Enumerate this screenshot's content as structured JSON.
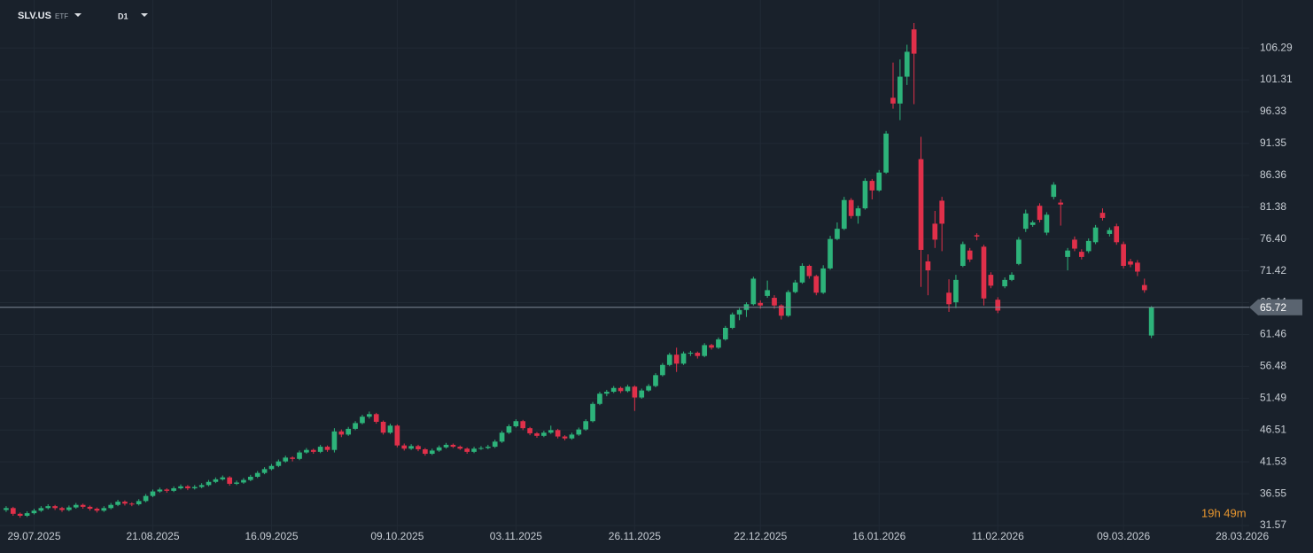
{
  "chart_data": {
    "type": "candlestick",
    "symbol": "SLV.US",
    "instrument_type": "ETF",
    "timeframe": "D1",
    "colors": {
      "up": "#2db37a",
      "down": "#e0304a"
    },
    "xlim": [
      -0.5,
      178
    ],
    "xticks": [
      {
        "value": 4,
        "label": "29.07.2025"
      },
      {
        "value": 21,
        "label": "21.08.2025"
      },
      {
        "value": 38,
        "label": "16.09.2025"
      },
      {
        "value": 56,
        "label": "09.10.2025"
      },
      {
        "value": 73,
        "label": "03.11.2025"
      },
      {
        "value": 90,
        "label": "26.11.2025"
      },
      {
        "value": 108,
        "label": "22.12.2025"
      },
      {
        "value": 125,
        "label": "16.01.2026"
      },
      {
        "value": 142,
        "label": "11.02.2026"
      },
      {
        "value": 160,
        "label": "09.03.2026"
      },
      {
        "value": 177,
        "label": "28.03.2026"
      }
    ],
    "ylim": [
      30.6,
      113.8
    ],
    "yticks": [
      31.57,
      36.55,
      41.53,
      46.51,
      51.49,
      56.48,
      61.46,
      66.44,
      71.42,
      {
        "value": 76.4,
        "label": "76.40"
      },
      81.38,
      86.36,
      91.35,
      96.33,
      101.31,
      106.29
    ],
    "grid": true,
    "last_price": 65.72,
    "countdown": "19h 49m",
    "ohlc": [
      [
        34.0,
        34.6,
        33.7,
        34.3
      ],
      [
        34.3,
        34.5,
        33.1,
        33.4
      ],
      [
        33.4,
        33.6,
        32.8,
        33.1
      ],
      [
        33.1,
        33.8,
        32.9,
        33.5
      ],
      [
        33.5,
        34.2,
        33.3,
        33.9
      ],
      [
        33.9,
        34.6,
        33.7,
        34.3
      ],
      [
        34.3,
        34.9,
        34.1,
        34.6
      ],
      [
        34.6,
        34.8,
        34.0,
        34.3
      ],
      [
        34.3,
        34.5,
        33.7,
        34.0
      ],
      [
        34.0,
        34.7,
        33.8,
        34.4
      ],
      [
        34.4,
        35.1,
        34.2,
        34.8
      ],
      [
        34.8,
        35.0,
        34.2,
        34.5
      ],
      [
        34.5,
        34.7,
        33.9,
        34.2
      ],
      [
        34.2,
        34.4,
        33.6,
        33.9
      ],
      [
        33.9,
        34.6,
        33.7,
        34.3
      ],
      [
        34.3,
        35.1,
        34.1,
        34.8
      ],
      [
        34.8,
        35.6,
        34.6,
        35.3
      ],
      [
        35.3,
        35.5,
        34.7,
        35.0
      ],
      [
        35.0,
        35.2,
        34.6,
        34.9
      ],
      [
        34.9,
        35.7,
        34.7,
        35.4
      ],
      [
        35.4,
        36.5,
        35.2,
        36.2
      ],
      [
        36.2,
        37.2,
        36.0,
        36.9
      ],
      [
        36.9,
        37.5,
        36.7,
        37.2
      ],
      [
        37.2,
        37.4,
        36.7,
        37.0
      ],
      [
        37.0,
        37.7,
        36.8,
        37.4
      ],
      [
        37.4,
        38.0,
        37.2,
        37.7
      ],
      [
        37.7,
        37.9,
        37.1,
        37.4
      ],
      [
        37.4,
        37.9,
        37.2,
        37.6
      ],
      [
        37.6,
        38.2,
        37.4,
        37.9
      ],
      [
        37.9,
        38.7,
        37.7,
        38.4
      ],
      [
        38.4,
        39.1,
        38.2,
        38.8
      ],
      [
        38.8,
        39.4,
        38.6,
        39.1
      ],
      [
        39.1,
        39.3,
        37.8,
        38.1
      ],
      [
        38.1,
        38.6,
        37.9,
        38.3
      ],
      [
        38.3,
        39.0,
        38.1,
        38.7
      ],
      [
        38.7,
        39.5,
        38.5,
        39.2
      ],
      [
        39.2,
        40.1,
        39.0,
        39.8
      ],
      [
        39.8,
        40.7,
        39.6,
        40.4
      ],
      [
        40.4,
        41.2,
        40.2,
        40.9
      ],
      [
        40.9,
        41.9,
        40.7,
        41.6
      ],
      [
        41.6,
        42.5,
        41.4,
        42.2
      ],
      [
        42.2,
        42.4,
        41.6,
        42.0
      ],
      [
        42.0,
        43.3,
        41.8,
        43.0
      ],
      [
        43.0,
        43.7,
        42.8,
        43.4
      ],
      [
        43.4,
        43.6,
        42.8,
        43.1
      ],
      [
        43.1,
        44.2,
        42.9,
        43.9
      ],
      [
        43.9,
        44.1,
        43.1,
        43.4
      ],
      [
        43.4,
        46.8,
        43.0,
        46.3
      ],
      [
        46.3,
        46.6,
        45.4,
        45.8
      ],
      [
        45.8,
        47.0,
        45.6,
        46.7
      ],
      [
        46.7,
        47.9,
        46.5,
        47.6
      ],
      [
        47.6,
        48.9,
        47.4,
        48.6
      ],
      [
        48.6,
        49.4,
        48.3,
        49.0
      ],
      [
        49.0,
        49.2,
        47.5,
        47.8
      ],
      [
        47.8,
        48.0,
        45.8,
        46.1
      ],
      [
        46.1,
        47.5,
        45.9,
        47.2
      ],
      [
        47.2,
        47.4,
        43.8,
        44.1
      ],
      [
        44.1,
        44.4,
        43.3,
        43.6
      ],
      [
        43.6,
        44.3,
        43.4,
        44.0
      ],
      [
        44.0,
        44.2,
        43.2,
        43.5
      ],
      [
        43.5,
        43.7,
        42.5,
        42.8
      ],
      [
        42.8,
        43.6,
        42.6,
        43.3
      ],
      [
        43.3,
        44.1,
        43.1,
        43.8
      ],
      [
        43.8,
        44.5,
        43.6,
        44.2
      ],
      [
        44.2,
        44.4,
        43.7,
        43.9
      ],
      [
        43.9,
        44.1,
        43.4,
        43.6
      ],
      [
        43.6,
        43.8,
        42.8,
        43.1
      ],
      [
        43.1,
        43.9,
        42.9,
        43.6
      ],
      [
        43.6,
        44.0,
        43.4,
        43.7
      ],
      [
        43.7,
        44.2,
        43.5,
        43.9
      ],
      [
        43.9,
        45.0,
        43.7,
        44.7
      ],
      [
        44.7,
        46.4,
        44.5,
        46.1
      ],
      [
        46.1,
        47.4,
        45.9,
        47.1
      ],
      [
        47.1,
        48.2,
        46.9,
        47.9
      ],
      [
        47.9,
        48.1,
        46.5,
        46.8
      ],
      [
        46.8,
        47.0,
        45.7,
        46.0
      ],
      [
        46.0,
        46.2,
        45.3,
        45.6
      ],
      [
        45.6,
        46.4,
        45.4,
        46.1
      ],
      [
        46.1,
        47.2,
        45.9,
        46.5
      ],
      [
        46.5,
        46.7,
        45.2,
        45.5
      ],
      [
        45.5,
        45.7,
        44.9,
        45.2
      ],
      [
        45.2,
        46.1,
        45.0,
        45.8
      ],
      [
        45.8,
        46.9,
        45.6,
        46.6
      ],
      [
        46.6,
        48.2,
        46.4,
        47.9
      ],
      [
        47.9,
        50.9,
        47.7,
        50.6
      ],
      [
        50.6,
        52.5,
        50.4,
        52.2
      ],
      [
        52.2,
        52.8,
        51.8,
        52.5
      ],
      [
        52.5,
        53.4,
        52.3,
        53.1
      ],
      [
        53.1,
        53.3,
        52.3,
        52.6
      ],
      [
        52.6,
        53.6,
        52.4,
        53.3
      ],
      [
        53.3,
        53.5,
        49.5,
        51.6
      ],
      [
        51.6,
        53.0,
        51.4,
        52.7
      ],
      [
        52.7,
        53.7,
        52.5,
        53.4
      ],
      [
        53.4,
        55.4,
        53.2,
        55.1
      ],
      [
        55.1,
        57.0,
        54.9,
        56.7
      ],
      [
        56.7,
        58.6,
        56.5,
        58.3
      ],
      [
        58.3,
        59.4,
        55.6,
        56.9
      ],
      [
        56.9,
        58.8,
        56.7,
        58.5
      ],
      [
        58.5,
        58.9,
        58.1,
        58.6
      ],
      [
        58.6,
        58.8,
        57.7,
        58.1
      ],
      [
        58.1,
        60.1,
        57.9,
        59.8
      ],
      [
        59.8,
        60.0,
        59.1,
        59.4
      ],
      [
        59.4,
        61.0,
        59.2,
        60.7
      ],
      [
        60.7,
        62.8,
        60.5,
        62.5
      ],
      [
        62.5,
        64.9,
        62.3,
        64.6
      ],
      [
        64.6,
        65.6,
        63.7,
        65.3
      ],
      [
        65.3,
        66.5,
        64.2,
        66.2
      ],
      [
        66.2,
        70.5,
        66.0,
        70.2
      ],
      [
        66.4,
        66.8,
        65.5,
        66.0
      ],
      [
        67.5,
        69.9,
        67.2,
        68.4
      ],
      [
        67.2,
        67.6,
        65.5,
        66.0
      ],
      [
        66.0,
        66.2,
        63.8,
        64.4
      ],
      [
        64.4,
        68.4,
        64.2,
        68.1
      ],
      [
        68.1,
        70.0,
        67.9,
        69.6
      ],
      [
        69.6,
        72.6,
        69.4,
        72.2
      ],
      [
        72.2,
        72.4,
        70.2,
        70.6
      ],
      [
        70.6,
        70.8,
        67.6,
        68.0
      ],
      [
        68.0,
        72.3,
        67.8,
        71.8
      ],
      [
        71.8,
        76.9,
        71.6,
        76.4
      ],
      [
        76.4,
        79.0,
        76.2,
        78.0
      ],
      [
        78.0,
        83.0,
        77.8,
        82.5
      ],
      [
        82.5,
        82.8,
        79.6,
        80.0
      ],
      [
        80.0,
        81.6,
        78.8,
        81.2
      ],
      [
        81.2,
        85.9,
        81.0,
        85.5
      ],
      [
        85.5,
        85.8,
        82.6,
        84.0
      ],
      [
        84.0,
        87.2,
        83.8,
        86.8
      ],
      [
        86.8,
        93.3,
        86.6,
        92.9
      ],
      [
        98.5,
        104.0,
        96.8,
        97.6
      ],
      [
        97.6,
        104.5,
        95.0,
        101.8
      ],
      [
        101.8,
        106.8,
        100.5,
        105.7
      ],
      [
        109.2,
        110.2,
        97.5,
        105.4
      ],
      [
        88.9,
        92.4,
        68.9,
        74.7
      ],
      [
        72.9,
        74.0,
        67.6,
        71.5
      ],
      [
        78.8,
        80.8,
        75.0,
        76.3
      ],
      [
        82.4,
        83.0,
        74.5,
        78.8
      ],
      [
        68.0,
        70.1,
        65.0,
        66.2
      ],
      [
        66.5,
        70.8,
        65.6,
        70.0
      ],
      [
        72.2,
        76.0,
        72.0,
        75.6
      ],
      [
        74.6,
        75.0,
        72.8,
        73.2
      ],
      [
        77.0,
        77.3,
        76.2,
        76.8
      ],
      [
        75.2,
        75.5,
        66.0,
        67.1
      ],
      [
        70.8,
        71.2,
        68.7,
        69.1
      ],
      [
        66.9,
        67.3,
        64.8,
        65.2
      ],
      [
        69.0,
        70.4,
        68.7,
        70.0
      ],
      [
        70.0,
        71.2,
        69.8,
        70.8
      ],
      [
        72.5,
        76.7,
        72.3,
        76.3
      ],
      [
        78.0,
        81.0,
        77.5,
        80.4
      ],
      [
        78.6,
        79.3,
        78.3,
        79.0
      ],
      [
        81.6,
        82.0,
        79.0,
        79.4
      ],
      [
        77.4,
        80.6,
        77.0,
        80.2
      ],
      [
        83.0,
        85.3,
        82.6,
        84.9
      ],
      [
        82.1,
        82.6,
        78.5,
        81.8
      ],
      [
        73.6,
        75.0,
        71.5,
        74.6
      ],
      [
        76.3,
        76.8,
        74.5,
        74.9
      ],
      [
        74.4,
        74.8,
        73.2,
        73.6
      ],
      [
        74.5,
        76.5,
        74.2,
        76.1
      ],
      [
        75.9,
        78.6,
        75.6,
        78.2
      ],
      [
        80.5,
        81.2,
        79.3,
        79.7
      ],
      [
        77.2,
        78.2,
        76.8,
        77.8
      ],
      [
        78.4,
        78.8,
        75.5,
        75.9
      ],
      [
        75.6,
        76.0,
        71.8,
        72.2
      ],
      [
        72.9,
        73.3,
        72.0,
        72.4
      ],
      [
        72.7,
        73.1,
        70.6,
        71.3
      ],
      [
        69.2,
        70.2,
        68.0,
        68.4
      ],
      [
        61.3,
        65.9,
        60.9,
        65.7
      ]
    ]
  }
}
